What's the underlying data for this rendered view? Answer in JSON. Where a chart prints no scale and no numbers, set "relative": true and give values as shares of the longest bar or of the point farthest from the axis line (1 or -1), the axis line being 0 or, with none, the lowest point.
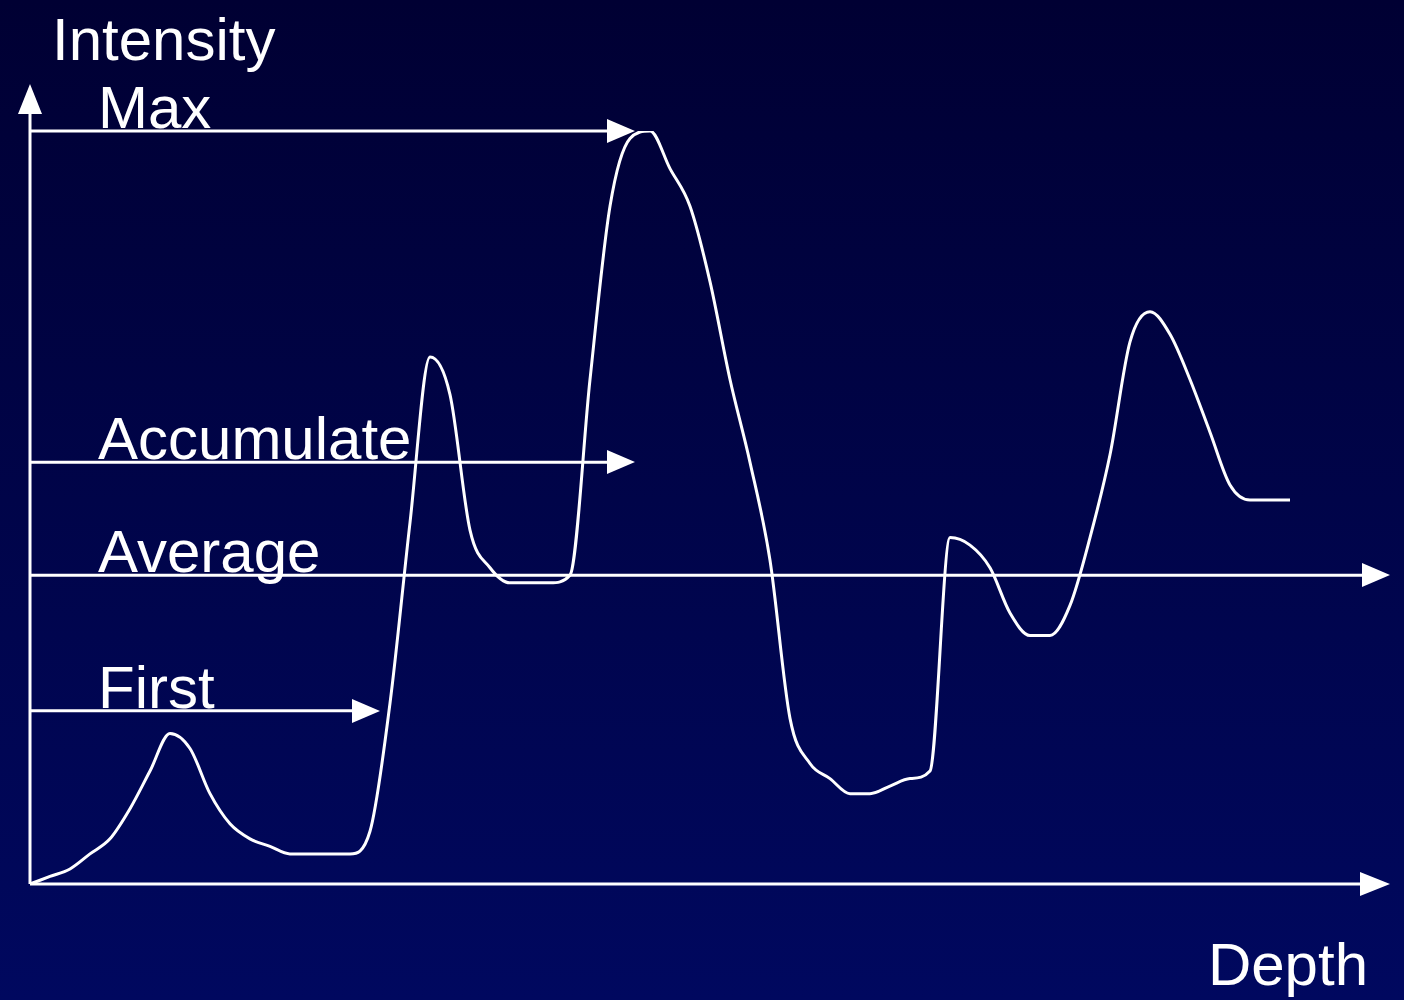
{
  "chart_data": {
    "type": "line",
    "relative": true,
    "xlabel": "Depth",
    "ylabel": "Intensity",
    "categories": [
      null,
      null,
      null,
      null,
      null,
      null,
      null,
      null,
      null,
      null,
      null,
      null,
      null,
      null,
      null,
      null,
      null,
      null,
      null,
      null,
      null,
      null,
      null,
      null,
      null,
      null,
      null,
      null,
      null,
      null,
      null,
      null,
      null,
      null,
      null,
      null,
      null,
      null,
      null,
      null,
      null,
      null,
      null,
      null,
      null,
      null,
      null,
      null,
      null,
      null,
      null,
      null,
      null,
      null,
      null,
      null,
      null,
      null,
      null,
      null,
      null,
      null,
      null,
      null
    ],
    "series": [
      {
        "color": "#ffffff",
        "values": [
          0,
          0.01,
          0.02,
          0.04,
          0.06,
          0.1,
          0.15,
          0.2,
          0.18,
          0.12,
          0.08,
          0.06,
          0.05,
          0.04,
          0.04,
          0.04,
          0.04,
          0.07,
          0.24,
          0.48,
          0.7,
          0.65,
          0.47,
          0.42,
          0.4,
          0.4,
          0.4,
          0.41,
          0.67,
          0.9,
          0.99,
          1.0,
          0.95,
          0.9,
          0.8,
          0.67,
          0.56,
          0.43,
          0.22,
          0.16,
          0.14,
          0.12,
          0.12,
          0.13,
          0.14,
          0.15,
          0.46,
          0.45,
          0.42,
          0.36,
          0.33,
          0.33,
          0.37,
          0.46,
          0.57,
          0.72,
          0.76,
          0.73,
          0.67,
          0.6,
          0.53,
          0.51,
          0.51,
          0.51
        ]
      }
    ],
    "ref_lines": [
      {
        "axis": "y",
        "value": 1.0,
        "label": "Max",
        "color": "#ffffff"
      },
      {
        "axis": "y",
        "value": 0.56,
        "label": "Accumulate",
        "color": "#ffffff"
      },
      {
        "axis": "y",
        "value": 0.41,
        "label": "Average",
        "color": "#ffffff"
      },
      {
        "axis": "y",
        "value": 0.23,
        "label": "First",
        "color": "#ffffff"
      }
    ],
    "legend": false
  }
}
